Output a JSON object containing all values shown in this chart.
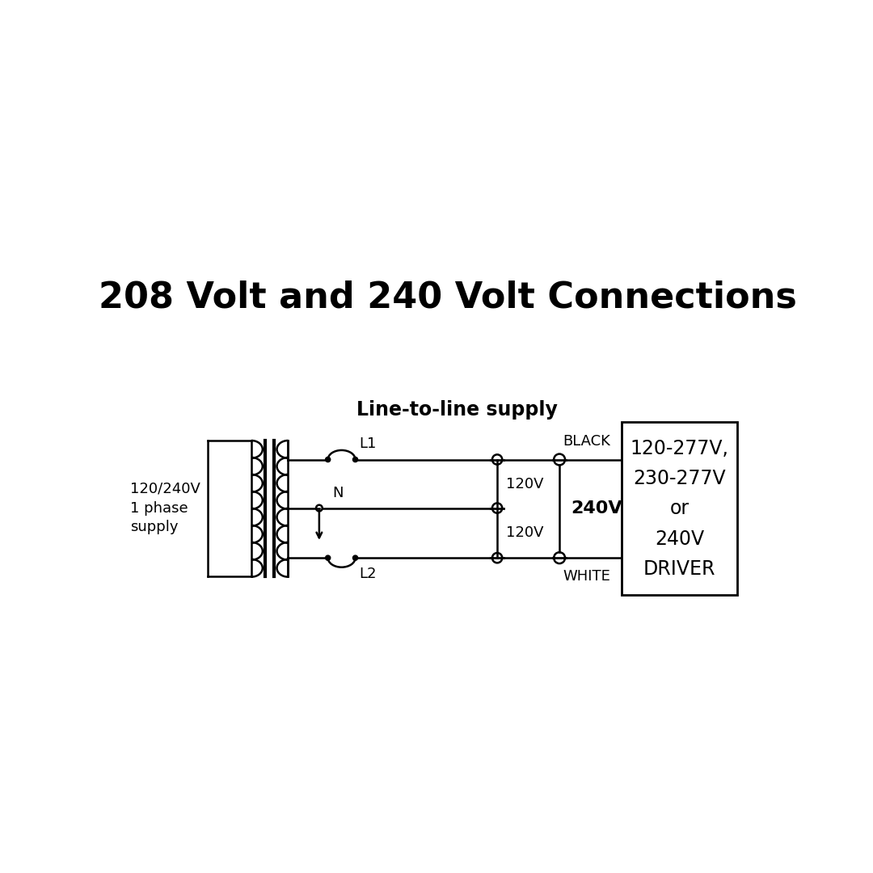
{
  "title": "208 Volt and 240 Volt Connections",
  "subtitle": "Line-to-line supply",
  "supply_label": "120/240V\n1 phase\nsupply",
  "l1_label": "L1",
  "l2_label": "L2",
  "n_label": "N",
  "black_label": "BLACK",
  "white_label": "WHITE",
  "v120_label": "120V",
  "v240_label": "240V",
  "driver_lines": [
    "120-277V,",
    "230-277V",
    "or",
    "240V",
    "DRIVER"
  ],
  "bg_color": "#ffffff",
  "line_color": "#000000",
  "title_fontsize": 32,
  "subtitle_fontsize": 17,
  "label_fontsize": 13,
  "driver_fontsize": 17
}
